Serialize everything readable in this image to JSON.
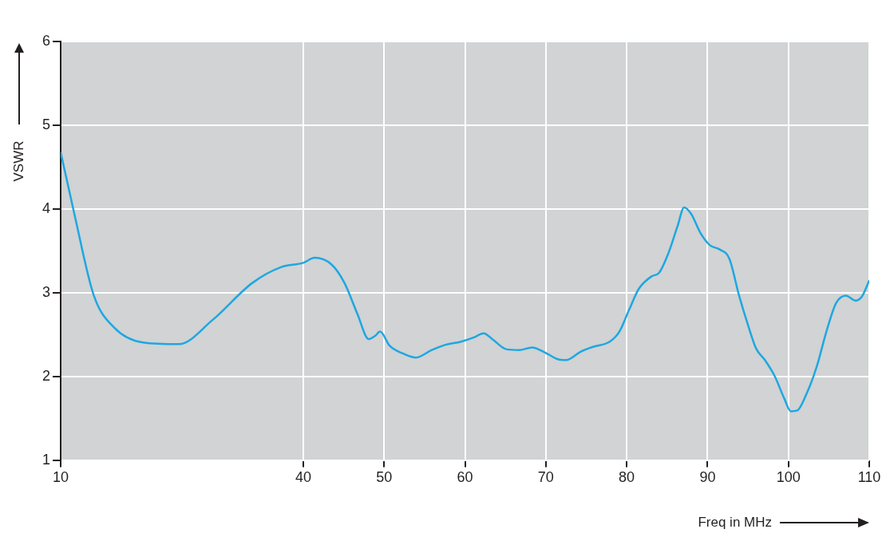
{
  "chart_data": {
    "type": "line",
    "xlabel": "Freq in MHz",
    "ylabel": "VSWR",
    "x": [
      10,
      11.7,
      14.1,
      16.6,
      20.2,
      24.6,
      28.8,
      33.7,
      37.3,
      40,
      41.4,
      43.5,
      45.1,
      46.7,
      48.1,
      48.9,
      49.5,
      50.7,
      52.3,
      53.9,
      55.9,
      57.5,
      59.5,
      61.1,
      62.3,
      63.5,
      65.1,
      66.7,
      68.3,
      69.9,
      71.5,
      72.5,
      74.3,
      75.9,
      77.9,
      79.1,
      80.3,
      81.5,
      83.1,
      84.0,
      85.1,
      86.3,
      87.1,
      88.0,
      89.1,
      90.3,
      91.5,
      92.7,
      93.9,
      95.1,
      96.0,
      97.1,
      98.3,
      99.5,
      100.3,
      101.1,
      102.3,
      103.5,
      104.7,
      105.9,
      107.1,
      108.3,
      109.1,
      110
    ],
    "series": [
      {
        "color": "#1ea7e1",
        "values": [
          4.68,
          3.94,
          2.97,
          2.59,
          2.41,
          2.39,
          2.68,
          3.12,
          3.31,
          3.36,
          3.42,
          3.34,
          3.12,
          2.75,
          2.45,
          2.49,
          2.54,
          2.37,
          2.28,
          2.23,
          2.32,
          2.38,
          2.42,
          2.47,
          2.52,
          2.44,
          2.33,
          2.32,
          2.35,
          2.29,
          2.21,
          2.2,
          2.3,
          2.36,
          2.42,
          2.54,
          2.8,
          3.05,
          3.2,
          3.24,
          3.46,
          3.8,
          4.02,
          3.94,
          3.72,
          3.57,
          3.52,
          3.41,
          2.97,
          2.59,
          2.34,
          2.2,
          2.01,
          1.74,
          1.59,
          1.6,
          1.81,
          2.12,
          2.54,
          2.88,
          2.97,
          2.91,
          2.96,
          3.15
        ]
      }
    ],
    "xlim": [
      10,
      110
    ],
    "xticks": [
      10,
      40,
      50,
      60,
      70,
      80,
      90,
      100,
      110
    ],
    "ylim": [
      1,
      6
    ],
    "yticks": [
      1,
      2,
      3,
      4,
      5,
      6
    ],
    "grid": true,
    "legend": false,
    "marker": "none",
    "line_style": "solid"
  }
}
